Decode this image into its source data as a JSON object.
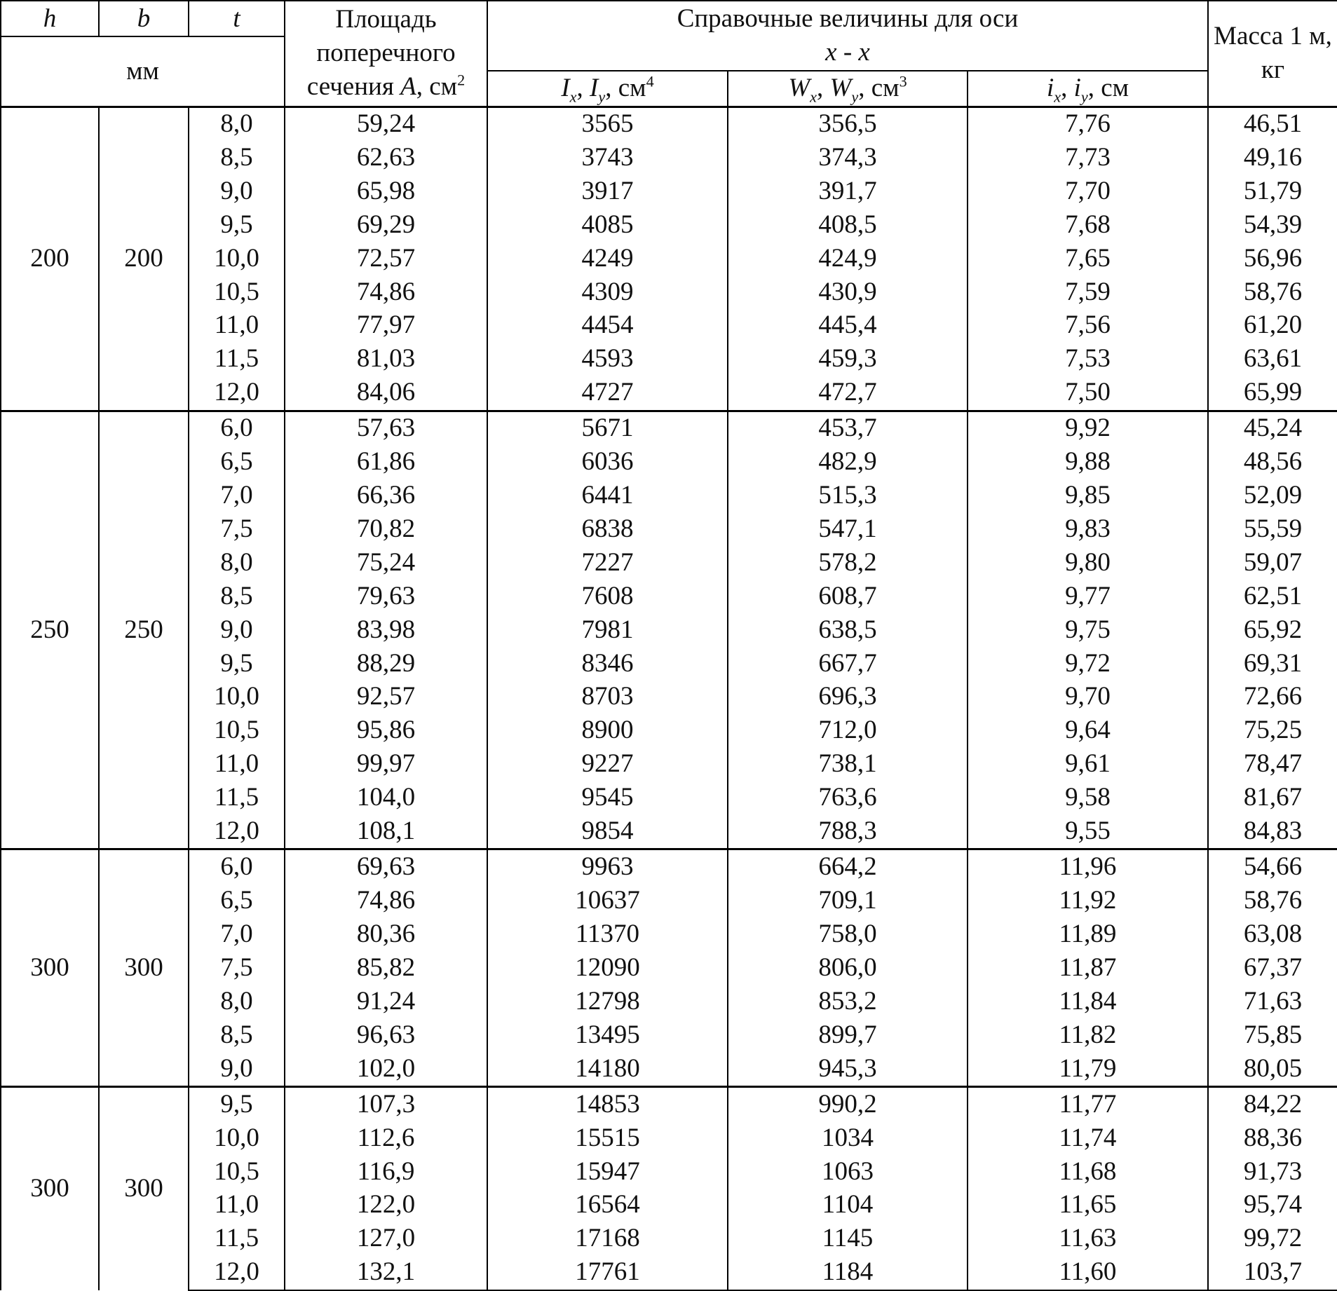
{
  "header": {
    "h": "h",
    "b": "b",
    "t": "t",
    "units": "мм",
    "area": [
      "Площадь поперечного сечения ",
      "A",
      ", см",
      "2"
    ],
    "axis_title": "Справочные величины для оси",
    "axis_name": "x - x",
    "inertia": [
      "I",
      "x",
      ", ",
      "I",
      "y",
      ", см",
      "4"
    ],
    "modulus": [
      "W",
      "x",
      ", ",
      "W",
      "y",
      ", см",
      "3"
    ],
    "radius": [
      "i",
      "x",
      ", ",
      "i",
      "y",
      ", см"
    ],
    "mass": "Масса 1 м, кг"
  },
  "groups": [
    {
      "h": "200",
      "b": "200",
      "rows": [
        [
          "8,0",
          "59,24",
          "3565",
          "356,5",
          "7,76",
          "46,51"
        ],
        [
          "8,5",
          "62,63",
          "3743",
          "374,3",
          "7,73",
          "49,16"
        ],
        [
          "9,0",
          "65,98",
          "3917",
          "391,7",
          "7,70",
          "51,79"
        ],
        [
          "9,5",
          "69,29",
          "4085",
          "408,5",
          "7,68",
          "54,39"
        ],
        [
          "10,0",
          "72,57",
          "4249",
          "424,9",
          "7,65",
          "56,96"
        ],
        [
          "10,5",
          "74,86",
          "4309",
          "430,9",
          "7,59",
          "58,76"
        ],
        [
          "11,0",
          "77,97",
          "4454",
          "445,4",
          "7,56",
          "61,20"
        ],
        [
          "11,5",
          "81,03",
          "4593",
          "459,3",
          "7,53",
          "63,61"
        ],
        [
          "12,0",
          "84,06",
          "4727",
          "472,7",
          "7,50",
          "65,99"
        ]
      ]
    },
    {
      "h": "250",
      "b": "250",
      "rows": [
        [
          "6,0",
          "57,63",
          "5671",
          "453,7",
          "9,92",
          "45,24"
        ],
        [
          "6,5",
          "61,86",
          "6036",
          "482,9",
          "9,88",
          "48,56"
        ],
        [
          "7,0",
          "66,36",
          "6441",
          "515,3",
          "9,85",
          "52,09"
        ],
        [
          "7,5",
          "70,82",
          "6838",
          "547,1",
          "9,83",
          "55,59"
        ],
        [
          "8,0",
          "75,24",
          "7227",
          "578,2",
          "9,80",
          "59,07"
        ],
        [
          "8,5",
          "79,63",
          "7608",
          "608,7",
          "9,77",
          "62,51"
        ],
        [
          "9,0",
          "83,98",
          "7981",
          "638,5",
          "9,75",
          "65,92"
        ],
        [
          "9,5",
          "88,29",
          "8346",
          "667,7",
          "9,72",
          "69,31"
        ],
        [
          "10,0",
          "92,57",
          "8703",
          "696,3",
          "9,70",
          "72,66"
        ],
        [
          "10,5",
          "95,86",
          "8900",
          "712,0",
          "9,64",
          "75,25"
        ],
        [
          "11,0",
          "99,97",
          "9227",
          "738,1",
          "9,61",
          "78,47"
        ],
        [
          "11,5",
          "104,0",
          "9545",
          "763,6",
          "9,58",
          "81,67"
        ],
        [
          "12,0",
          "108,1",
          "9854",
          "788,3",
          "9,55",
          "84,83"
        ]
      ]
    },
    {
      "h": "300",
      "b": "300",
      "rows": [
        [
          "6,0",
          "69,63",
          "9963",
          "664,2",
          "11,96",
          "54,66"
        ],
        [
          "6,5",
          "74,86",
          "10637",
          "709,1",
          "11,92",
          "58,76"
        ],
        [
          "7,0",
          "80,36",
          "11370",
          "758,0",
          "11,89",
          "63,08"
        ],
        [
          "7,5",
          "85,82",
          "12090",
          "806,0",
          "11,87",
          "67,37"
        ],
        [
          "8,0",
          "91,24",
          "12798",
          "853,2",
          "11,84",
          "71,63"
        ],
        [
          "8,5",
          "96,63",
          "13495",
          "899,7",
          "11,82",
          "75,85"
        ],
        [
          "9,0",
          "102,0",
          "14180",
          "945,3",
          "11,79",
          "80,05"
        ]
      ]
    },
    {
      "h": "300",
      "b": "300",
      "rows": [
        [
          "9,5",
          "107,3",
          "14853",
          "990,2",
          "11,77",
          "84,22"
        ],
        [
          "10,0",
          "112,6",
          "15515",
          "1034",
          "11,74",
          "88,36"
        ],
        [
          "10,5",
          "116,9",
          "15947",
          "1063",
          "11,68",
          "91,73"
        ],
        [
          "11,0",
          "122,0",
          "16564",
          "1104",
          "11,65",
          "95,74"
        ],
        [
          "11,5",
          "127,0",
          "17168",
          "1145",
          "11,63",
          "99,72"
        ],
        [
          "12,0",
          "132,1",
          "17761",
          "1184",
          "11,60",
          "103,7"
        ]
      ]
    }
  ]
}
